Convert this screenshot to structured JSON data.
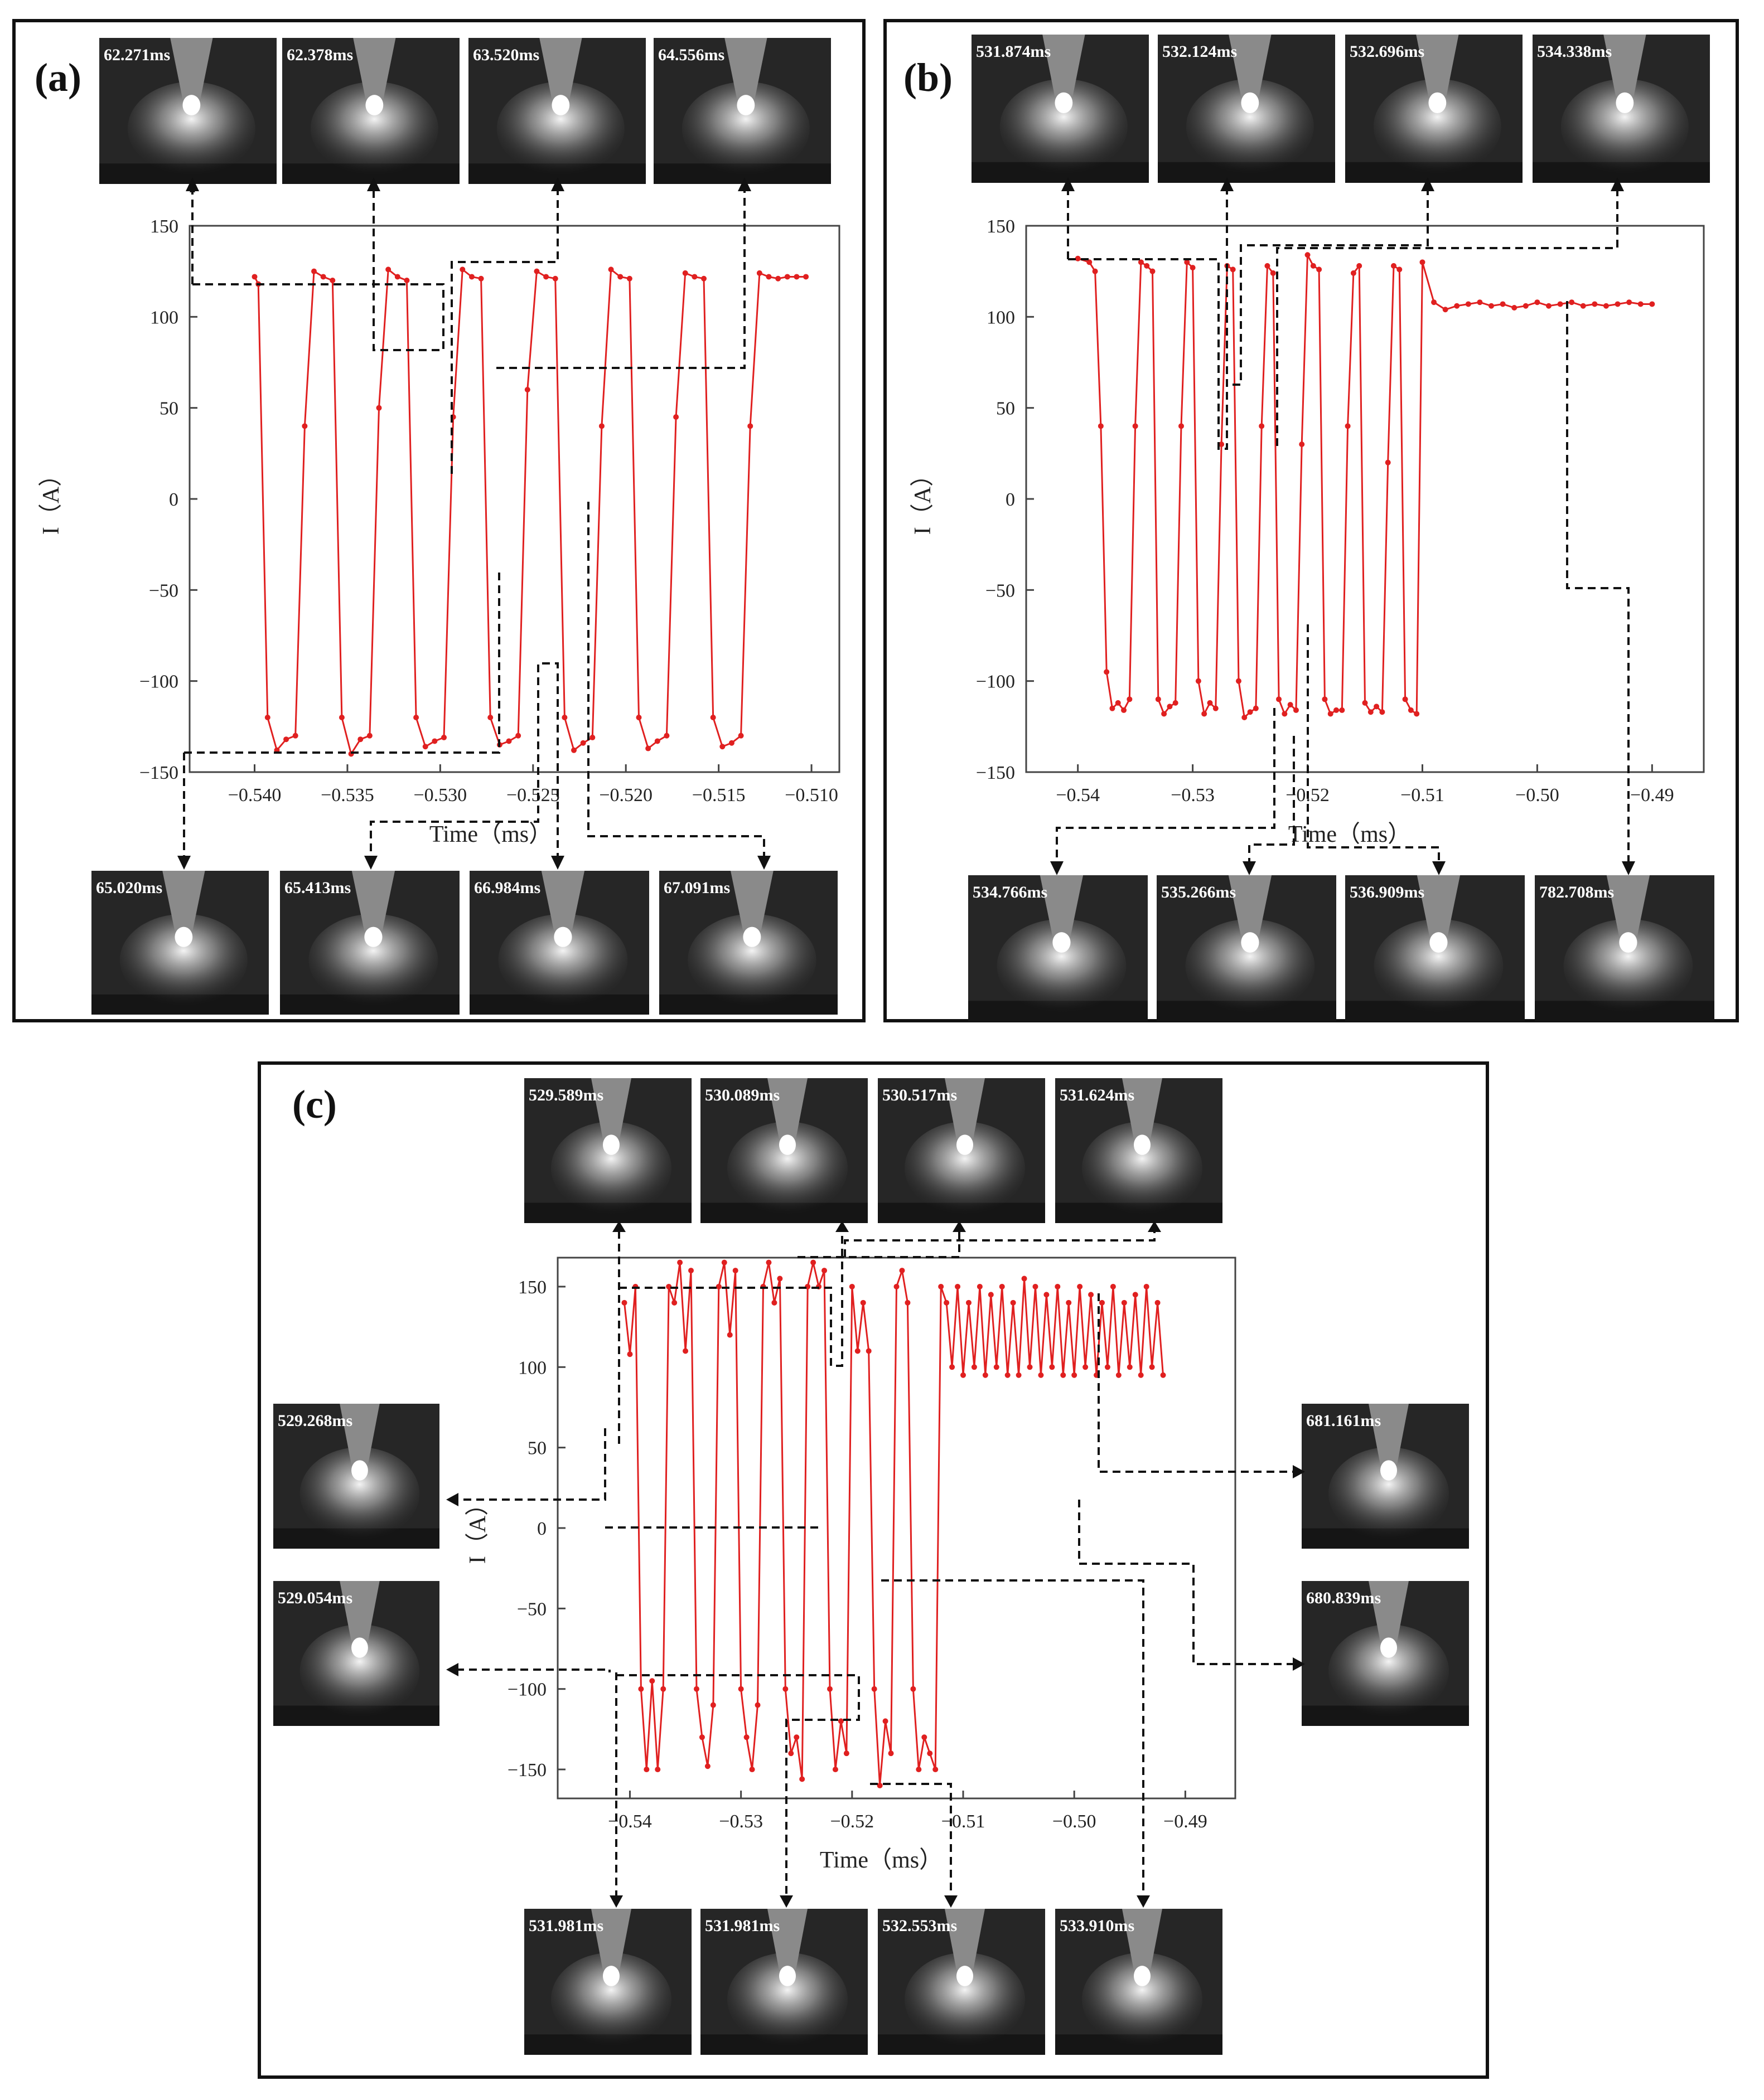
{
  "panels": [
    {
      "label": "(a)",
      "frames_top": [
        "62.271ms",
        "62.378ms",
        "63.520ms",
        "64.556ms"
      ],
      "frames_bottom": [
        "65.020ms",
        "65.413ms",
        "66.984ms",
        "67.091ms"
      ]
    },
    {
      "label": "(b)",
      "frames_top": [
        "531.874ms",
        "532.124ms",
        "532.696ms",
        "534.338ms"
      ],
      "frames_bottom": [
        "534.766ms",
        "535.266ms",
        "536.909ms",
        "782.708ms"
      ]
    },
    {
      "label": "(c)",
      "frames_top": [
        "529.589ms",
        "530.089ms",
        "530.517ms",
        "531.624ms"
      ],
      "frames_left": [
        "529.268ms",
        "529.054ms"
      ],
      "frames_right": [
        "681.161ms",
        "680.839ms"
      ],
      "frames_bottom": [
        "531.981ms",
        "531.981ms",
        "532.553ms",
        "533.910ms"
      ]
    }
  ],
  "chart_data": [
    {
      "type": "line",
      "panel": "(a)",
      "xlabel": "Time（ms）",
      "ylabel": "I（A）",
      "xlim": [
        -0.5435,
        -0.5085
      ],
      "ylim": [
        -150,
        150
      ],
      "xticks": [
        -0.54,
        -0.535,
        -0.53,
        -0.525,
        -0.52,
        -0.515,
        -0.51
      ],
      "xtick_labels": [
        "−0.540",
        "−0.535",
        "−0.530",
        "−0.525",
        "−0.520",
        "−0.515",
        "−0.510"
      ],
      "yticks": [
        -150,
        -100,
        -50,
        0,
        50,
        100,
        150
      ],
      "ytick_labels": [
        "−150",
        "−100",
        "−50",
        "0",
        "50",
        "100",
        "150"
      ],
      "color": "#e02020",
      "x": [
        -0.54,
        -0.5398,
        -0.5393,
        -0.5388,
        -0.5383,
        -0.5378,
        -0.5373,
        -0.5368,
        -0.5363,
        -0.5358,
        -0.5353,
        -0.5348,
        -0.5343,
        -0.5338,
        -0.5333,
        -0.5328,
        -0.5323,
        -0.5318,
        -0.5313,
        -0.5308,
        -0.5303,
        -0.5298,
        -0.5293,
        -0.5288,
        -0.5283,
        -0.5278,
        -0.5273,
        -0.5268,
        -0.5263,
        -0.5258,
        -0.5253,
        -0.5248,
        -0.5243,
        -0.5238,
        -0.5233,
        -0.5228,
        -0.5223,
        -0.5218,
        -0.5213,
        -0.5208,
        -0.5203,
        -0.5198,
        -0.5193,
        -0.5188,
        -0.5183,
        -0.5178,
        -0.5173,
        -0.5168,
        -0.5163,
        -0.5158,
        -0.5153,
        -0.5148,
        -0.5143,
        -0.5138,
        -0.5133,
        -0.5128,
        -0.5123,
        -0.5118,
        -0.5113,
        -0.5108,
        -0.5103
      ],
      "y": [
        122,
        118,
        -120,
        -138,
        -132,
        -130,
        40,
        125,
        122,
        120,
        -120,
        -140,
        -132,
        -130,
        50,
        126,
        122,
        120,
        -120,
        -136,
        -133,
        -131,
        45,
        126,
        122,
        121,
        -120,
        -135,
        -133,
        -130,
        60,
        125,
        122,
        121,
        -120,
        -138,
        -134,
        -131,
        40,
        126,
        122,
        121,
        -120,
        -137,
        -133,
        -130,
        45,
        124,
        122,
        121,
        -120,
        -136,
        -134,
        -130,
        40,
        124,
        122,
        121,
        122,
        122,
        122
      ]
    },
    {
      "type": "line",
      "panel": "(b)",
      "xlabel": "Time（ms）",
      "ylabel": "I（A）",
      "xlim": [
        -0.5445,
        -0.4855
      ],
      "ylim": [
        -150,
        150
      ],
      "xticks": [
        -0.54,
        -0.53,
        -0.52,
        -0.51,
        -0.5,
        -0.49
      ],
      "xtick_labels": [
        "−0.54",
        "−0.53",
        "−0.52",
        "−0.51",
        "−0.50",
        "−0.49"
      ],
      "yticks": [
        -150,
        -100,
        -50,
        0,
        50,
        100,
        150
      ],
      "ytick_labels": [
        "−150",
        "−100",
        "−50",
        "0",
        "50",
        "100",
        "150"
      ],
      "color": "#e02020",
      "x": [
        -0.54,
        -0.539,
        -0.5385,
        -0.538,
        -0.5375,
        -0.537,
        -0.5365,
        -0.536,
        -0.5355,
        -0.535,
        -0.5345,
        -0.534,
        -0.5335,
        -0.533,
        -0.5325,
        -0.532,
        -0.5315,
        -0.531,
        -0.5305,
        -0.53,
        -0.5295,
        -0.529,
        -0.5285,
        -0.528,
        -0.5275,
        -0.527,
        -0.5265,
        -0.526,
        -0.5255,
        -0.525,
        -0.5245,
        -0.524,
        -0.5235,
        -0.523,
        -0.5225,
        -0.522,
        -0.5215,
        -0.521,
        -0.5205,
        -0.52,
        -0.5195,
        -0.519,
        -0.5185,
        -0.518,
        -0.5175,
        -0.517,
        -0.5165,
        -0.516,
        -0.5155,
        -0.515,
        -0.5145,
        -0.514,
        -0.5135,
        -0.513,
        -0.5125,
        -0.512,
        -0.5115,
        -0.511,
        -0.5105,
        -0.51,
        -0.509,
        -0.508,
        -0.507,
        -0.506,
        -0.505,
        -0.504,
        -0.503,
        -0.502,
        -0.501,
        -0.5,
        -0.499,
        -0.498,
        -0.497,
        -0.496,
        -0.495,
        -0.494,
        -0.493,
        -0.492,
        -0.491,
        -0.49
      ],
      "y": [
        132,
        130,
        125,
        40,
        -95,
        -115,
        -112,
        -116,
        -110,
        40,
        130,
        128,
        125,
        -110,
        -118,
        -114,
        -112,
        40,
        130,
        127,
        -100,
        -118,
        -112,
        -115,
        30,
        128,
        126,
        -100,
        -120,
        -117,
        -115,
        40,
        128,
        124,
        -110,
        -118,
        -113,
        -116,
        30,
        134,
        128,
        126,
        -110,
        -118,
        -116,
        -116,
        40,
        124,
        128,
        -112,
        -117,
        -114,
        -117,
        20,
        128,
        126,
        -110,
        -116,
        -118,
        130,
        108,
        104,
        106,
        107,
        108,
        106,
        107,
        105,
        106,
        108,
        106,
        107,
        108,
        106,
        107,
        106,
        107,
        108,
        107,
        107
      ]
    },
    {
      "type": "line",
      "panel": "(c)",
      "xlabel": "Time（ms）",
      "ylabel": "I（A）",
      "xlim": [
        -0.5465,
        -0.4855
      ],
      "ylim": [
        -168,
        168
      ],
      "xticks": [
        -0.54,
        -0.53,
        -0.52,
        -0.51,
        -0.5,
        -0.49
      ],
      "xtick_labels": [
        "−0.54",
        "−0.53",
        "−0.52",
        "−0.51",
        "−0.50",
        "−0.49"
      ],
      "yticks": [
        -150,
        -100,
        -50,
        0,
        50,
        100,
        150
      ],
      "ytick_labels": [
        "−150",
        "−100",
        "−50",
        "0",
        "50",
        "100",
        "150"
      ],
      "color": "#e02020",
      "x": [
        -0.5405,
        -0.54,
        -0.5395,
        -0.539,
        -0.5385,
        -0.538,
        -0.5375,
        -0.537,
        -0.5365,
        -0.536,
        -0.5355,
        -0.535,
        -0.5345,
        -0.534,
        -0.5335,
        -0.533,
        -0.5325,
        -0.532,
        -0.5315,
        -0.531,
        -0.5305,
        -0.53,
        -0.5295,
        -0.529,
        -0.5285,
        -0.528,
        -0.5275,
        -0.527,
        -0.5265,
        -0.526,
        -0.5255,
        -0.525,
        -0.5245,
        -0.524,
        -0.5235,
        -0.523,
        -0.5225,
        -0.522,
        -0.5215,
        -0.521,
        -0.5205,
        -0.52,
        -0.5195,
        -0.519,
        -0.5185,
        -0.518,
        -0.5175,
        -0.517,
        -0.5165,
        -0.516,
        -0.5155,
        -0.515,
        -0.5145,
        -0.514,
        -0.5135,
        -0.513,
        -0.5125,
        -0.512,
        -0.5115,
        -0.511,
        -0.5105,
        -0.51,
        -0.5095,
        -0.509,
        -0.5085,
        -0.508,
        -0.5075,
        -0.507,
        -0.5065,
        -0.506,
        -0.5055,
        -0.505,
        -0.5045,
        -0.504,
        -0.5035,
        -0.503,
        -0.5025,
        -0.502,
        -0.5015,
        -0.501,
        -0.5005,
        -0.5,
        -0.4995,
        -0.499,
        -0.4985,
        -0.498,
        -0.4975,
        -0.497,
        -0.4965,
        -0.496,
        -0.4955,
        -0.495,
        -0.4945,
        -0.494,
        -0.4935,
        -0.493,
        -0.4925,
        -0.492
      ],
      "y": [
        140,
        108,
        150,
        -100,
        -150,
        -95,
        -150,
        -100,
        150,
        140,
        165,
        110,
        160,
        -100,
        -130,
        -148,
        -110,
        150,
        165,
        120,
        160,
        -100,
        -130,
        -150,
        -110,
        150,
        165,
        140,
        155,
        -100,
        -140,
        -130,
        -156,
        150,
        165,
        150,
        160,
        -100,
        -150,
        -120,
        -140,
        150,
        110,
        140,
        110,
        -100,
        -160,
        -120,
        -140,
        150,
        160,
        140,
        -100,
        -150,
        -130,
        -140,
        -150,
        150,
        140,
        100,
        150,
        95,
        140,
        100,
        150,
        95,
        145,
        100,
        150,
        95,
        140,
        95,
        155,
        100,
        150,
        95,
        145,
        100,
        150,
        95,
        140,
        95,
        150,
        100,
        145,
        95,
        140,
        100,
        150,
        95,
        140,
        100,
        145,
        95,
        150,
        100,
        140,
        95
      ]
    }
  ]
}
